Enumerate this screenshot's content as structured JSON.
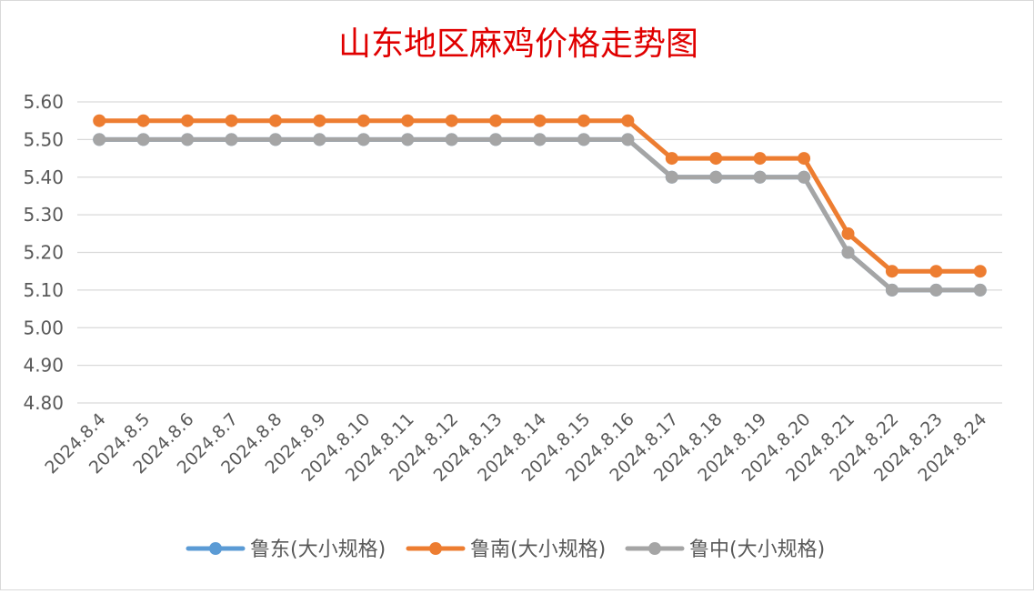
{
  "colors": {
    "series_0": "#5B9BD5",
    "series_1": "#ED7D31",
    "series_2": "#A5A5A5",
    "title": "#E00000",
    "grid": "#D9D9D9",
    "axis_text": "#595959"
  },
  "chart_data": {
    "type": "line",
    "title": "山东地区麻鸡价格走势图",
    "xlabel": "",
    "ylabel": "",
    "ylim": [
      4.8,
      5.6
    ],
    "ytick_step": 0.1,
    "y_tick_labels": [
      "4.80",
      "4.90",
      "5.00",
      "5.10",
      "5.20",
      "5.30",
      "5.40",
      "5.50",
      "5.60"
    ],
    "grid": true,
    "legend_position": "bottom",
    "categories": [
      "2024.8.4",
      "2024.8.5",
      "2024.8.6",
      "2024.8.7",
      "2024.8.8",
      "2024.8.9",
      "2024.8.10",
      "2024.8.11",
      "2024.8.12",
      "2024.8.13",
      "2024.8.14",
      "2024.8.15",
      "2024.8.16",
      "2024.8.17",
      "2024.8.18",
      "2024.8.19",
      "2024.8.20",
      "2024.8.21",
      "2024.8.22",
      "2024.8.23",
      "2024.8.24"
    ],
    "series": [
      {
        "name": "鲁东(大小规格)",
        "values": [
          5.5,
          5.5,
          5.5,
          5.5,
          5.5,
          5.5,
          5.5,
          5.5,
          5.5,
          5.5,
          5.5,
          5.5,
          5.5,
          5.4,
          5.4,
          5.4,
          5.4,
          5.2,
          5.1,
          5.1,
          5.1
        ]
      },
      {
        "name": "鲁南(大小规格)",
        "values": [
          5.55,
          5.55,
          5.55,
          5.55,
          5.55,
          5.55,
          5.55,
          5.55,
          5.55,
          5.55,
          5.55,
          5.55,
          5.55,
          5.45,
          5.45,
          5.45,
          5.45,
          5.25,
          5.15,
          5.15,
          5.15
        ]
      },
      {
        "name": "鲁中(大小规格)",
        "values": [
          5.5,
          5.5,
          5.5,
          5.5,
          5.5,
          5.5,
          5.5,
          5.5,
          5.5,
          5.5,
          5.5,
          5.5,
          5.5,
          5.4,
          5.4,
          5.4,
          5.4,
          5.2,
          5.1,
          5.1,
          5.1
        ]
      }
    ]
  }
}
